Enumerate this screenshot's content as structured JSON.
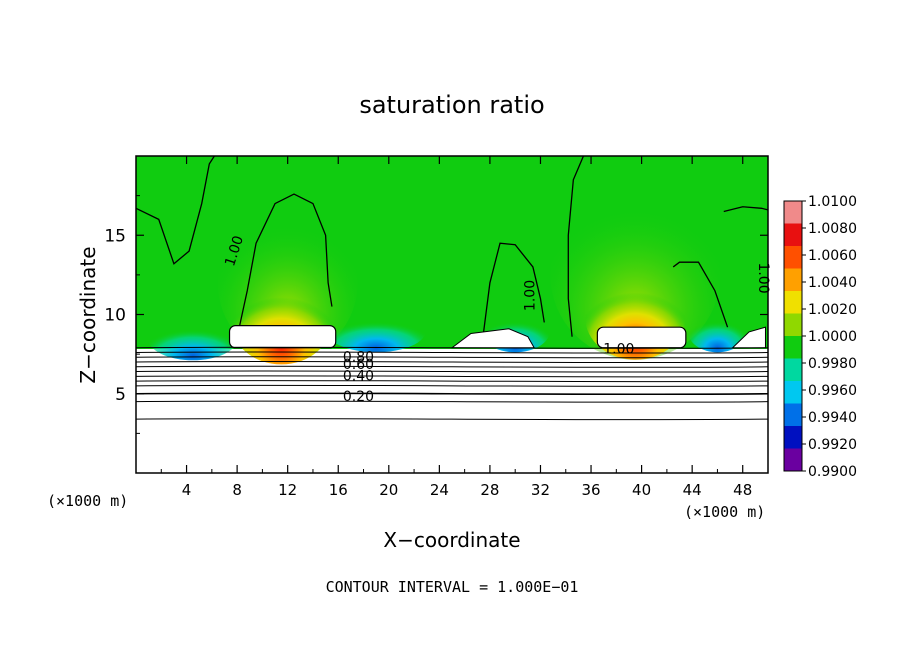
{
  "chart_data": {
    "type": "heatmap",
    "title": "saturation ratio",
    "xlabel": "X−coordinate",
    "ylabel": "Z−coordinate",
    "x_unit_left": "(×1000 m)",
    "x_unit_right": "(×1000 m)",
    "footer": "CONTOUR INTERVAL = 1.000E−01",
    "xlim": [
      0,
      50
    ],
    "ylim": [
      0,
      20
    ],
    "x_ticks": [
      4,
      8,
      12,
      16,
      20,
      24,
      28,
      32,
      36,
      40,
      44,
      48
    ],
    "y_ticks": [
      5,
      10,
      15
    ],
    "colorbar": {
      "levels": [
        "1.0100",
        "1.0080",
        "1.0060",
        "1.0040",
        "1.0020",
        "1.0000",
        "0.9980",
        "0.9960",
        "0.9940",
        "0.9920",
        "0.9900"
      ],
      "colors": [
        "#f08a8a",
        "#e81010",
        "#ff5000",
        "#ffa000",
        "#f0e000",
        "#90d800",
        "#10cc10",
        "#00d8a0",
        "#00c8f0",
        "#0070e8",
        "#0010c0",
        "#6a00a0"
      ]
    },
    "contour_labels": [
      {
        "text": "1.00",
        "x": 7.8,
        "y": 14.0,
        "rotate": -72
      },
      {
        "text": "1.00",
        "x": 31.2,
        "y": 11.2,
        "rotate": -90
      },
      {
        "text": "1.00",
        "x": 38.2,
        "y": 7.8,
        "rotate": 0
      },
      {
        "text": "1.00",
        "x": 49.6,
        "y": 12.3,
        "rotate": 90
      },
      {
        "text": "0.80",
        "x": 17.6,
        "y": 7.3,
        "rotate": 0
      },
      {
        "text": "0.60",
        "x": 17.6,
        "y": 6.8,
        "rotate": 0
      },
      {
        "text": "0.40",
        "x": 17.6,
        "y": 6.1,
        "rotate": 0
      },
      {
        "text": "0.20",
        "x": 17.6,
        "y": 4.8,
        "rotate": 0
      }
    ],
    "horizontal_contours": [
      7.9,
      7.6,
      7.3,
      7.0,
      6.7,
      6.4,
      6.1,
      5.8,
      5.5,
      5.0,
      4.5,
      3.4
    ],
    "max_regions": [
      {
        "x": 11.5,
        "y": 9.5
      },
      {
        "x": 39.5,
        "y": 9.8
      }
    ]
  }
}
